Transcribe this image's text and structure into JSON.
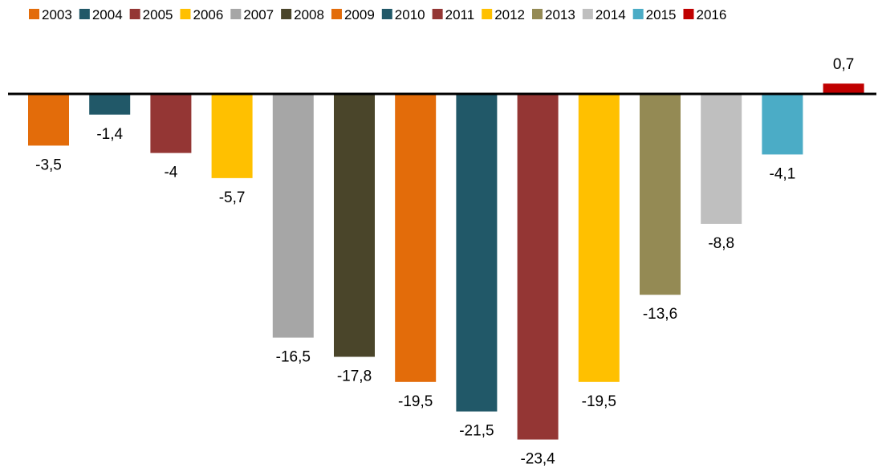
{
  "chart_data": {
    "type": "bar",
    "title": "",
    "xlabel": "",
    "ylabel": "",
    "categories": [
      "2003",
      "2004",
      "2005",
      "2006",
      "2007",
      "2008",
      "2009",
      "2010",
      "2011",
      "2012",
      "2013",
      "2014",
      "2015",
      "2016"
    ],
    "values": [
      -3.5,
      -1.4,
      -4,
      -5.7,
      -16.5,
      -17.8,
      -19.5,
      -21.5,
      -23.4,
      -19.5,
      -13.6,
      -8.8,
      -4.1,
      0.7
    ],
    "value_labels": [
      "-3,5",
      "-1,4",
      "-4",
      "-5,7",
      "-16,5",
      "-17,8",
      "-19,5",
      "-21,5",
      "-23,4",
      "-19,5",
      "-13,6",
      "-8,8",
      "-4,1",
      "0,7"
    ],
    "colors": [
      "#E36C0A",
      "#215868",
      "#943634",
      "#FFC000",
      "#A6A6A6",
      "#4A452A",
      "#E36C0A",
      "#215868",
      "#943634",
      "#FFC000",
      "#948A54",
      "#BFBFBF",
      "#4BACC6",
      "#C00000"
    ],
    "legend": {
      "position": "top",
      "entries": [
        "2003",
        "2004",
        "2005",
        "2006",
        "2007",
        "2008",
        "2009",
        "2010",
        "2011",
        "2012",
        "2013",
        "2014",
        "2015",
        "2016"
      ]
    },
    "ylim": [
      -23.4,
      0.7
    ],
    "grid": false
  }
}
